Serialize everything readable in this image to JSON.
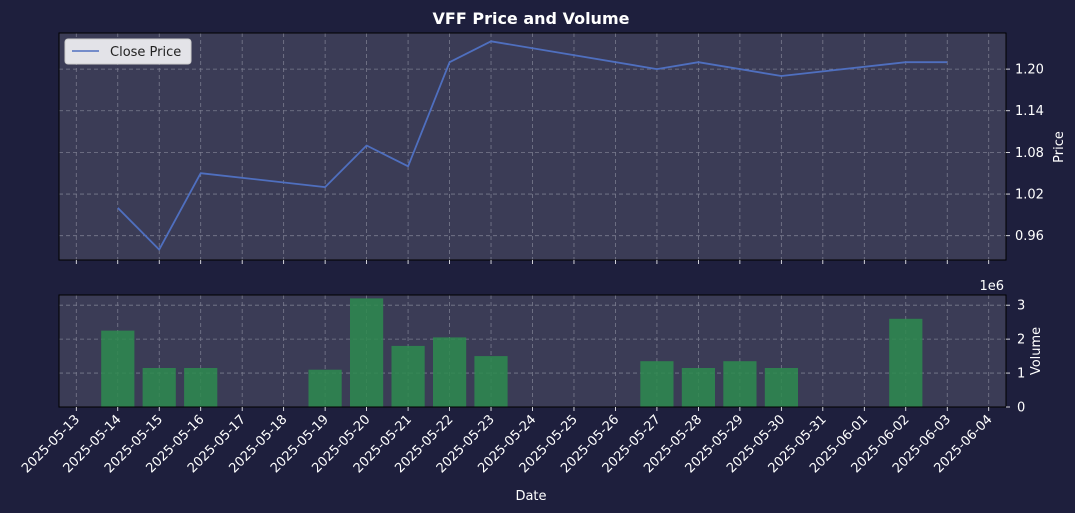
{
  "colors": {
    "background": "#1e1f3d",
    "plot_background": "#3b3c56",
    "grid": "#7a7b8e",
    "text": "#ffffff",
    "price_line": "#4f6fbf",
    "volume_bar": "#2e8b4f",
    "legend_background": "#e3e3e8",
    "legend_text": "#222222"
  },
  "chart_data": [
    {
      "type": "line",
      "title": "VFF Price and Volume",
      "ylabel": "Price",
      "ylim": [
        0.925,
        1.252
      ],
      "yticks": [
        "0.96",
        "1.02",
        "1.08",
        "1.14",
        "1.20"
      ],
      "ytick_values": [
        0.96,
        1.02,
        1.08,
        1.14,
        1.2
      ],
      "grid": true,
      "legend": "top-left",
      "series": [
        {
          "name": "Close Price",
          "x": [
            "2025-05-14",
            "2025-05-15",
            "2025-05-16",
            "2025-05-19",
            "2025-05-20",
            "2025-05-21",
            "2025-05-22",
            "2025-05-23",
            "2025-05-27",
            "2025-05-28",
            "2025-05-30",
            "2025-06-02",
            "2025-06-03"
          ],
          "values": [
            1.0,
            0.94,
            1.05,
            1.03,
            1.09,
            1.06,
            1.21,
            1.24,
            1.2,
            1.21,
            1.19,
            1.21,
            1.21
          ]
        }
      ]
    },
    {
      "type": "bar",
      "xlabel": "Date",
      "ylabel": "Volume",
      "scale_label": "1e6",
      "ylim": [
        0,
        3.3
      ],
      "yticks": [
        "0",
        "1",
        "2",
        "3"
      ],
      "ytick_values": [
        0,
        1,
        2,
        3
      ],
      "grid": true,
      "x": [
        "2025-05-14",
        "2025-05-15",
        "2025-05-16",
        "2025-05-19",
        "2025-05-20",
        "2025-05-21",
        "2025-05-22",
        "2025-05-23",
        "2025-05-27",
        "2025-05-28",
        "2025-05-29",
        "2025-05-30",
        "2025-06-02"
      ],
      "values": [
        2.25,
        1.15,
        1.15,
        1.1,
        3.2,
        1.8,
        2.05,
        1.5,
        1.35,
        1.15,
        1.35,
        1.15,
        2.6
      ]
    }
  ],
  "x_axis": {
    "xlim": [
      "2025-05-12T14:00",
      "2025-06-04T10:00"
    ],
    "ticks": [
      "2025-05-13",
      "2025-05-14",
      "2025-05-15",
      "2025-05-16",
      "2025-05-17",
      "2025-05-18",
      "2025-05-19",
      "2025-05-20",
      "2025-05-21",
      "2025-05-22",
      "2025-05-23",
      "2025-05-24",
      "2025-05-25",
      "2025-05-26",
      "2025-05-27",
      "2025-05-28",
      "2025-05-29",
      "2025-05-30",
      "2025-05-31",
      "2025-06-01",
      "2025-06-02",
      "2025-06-03",
      "2025-06-04"
    ]
  }
}
